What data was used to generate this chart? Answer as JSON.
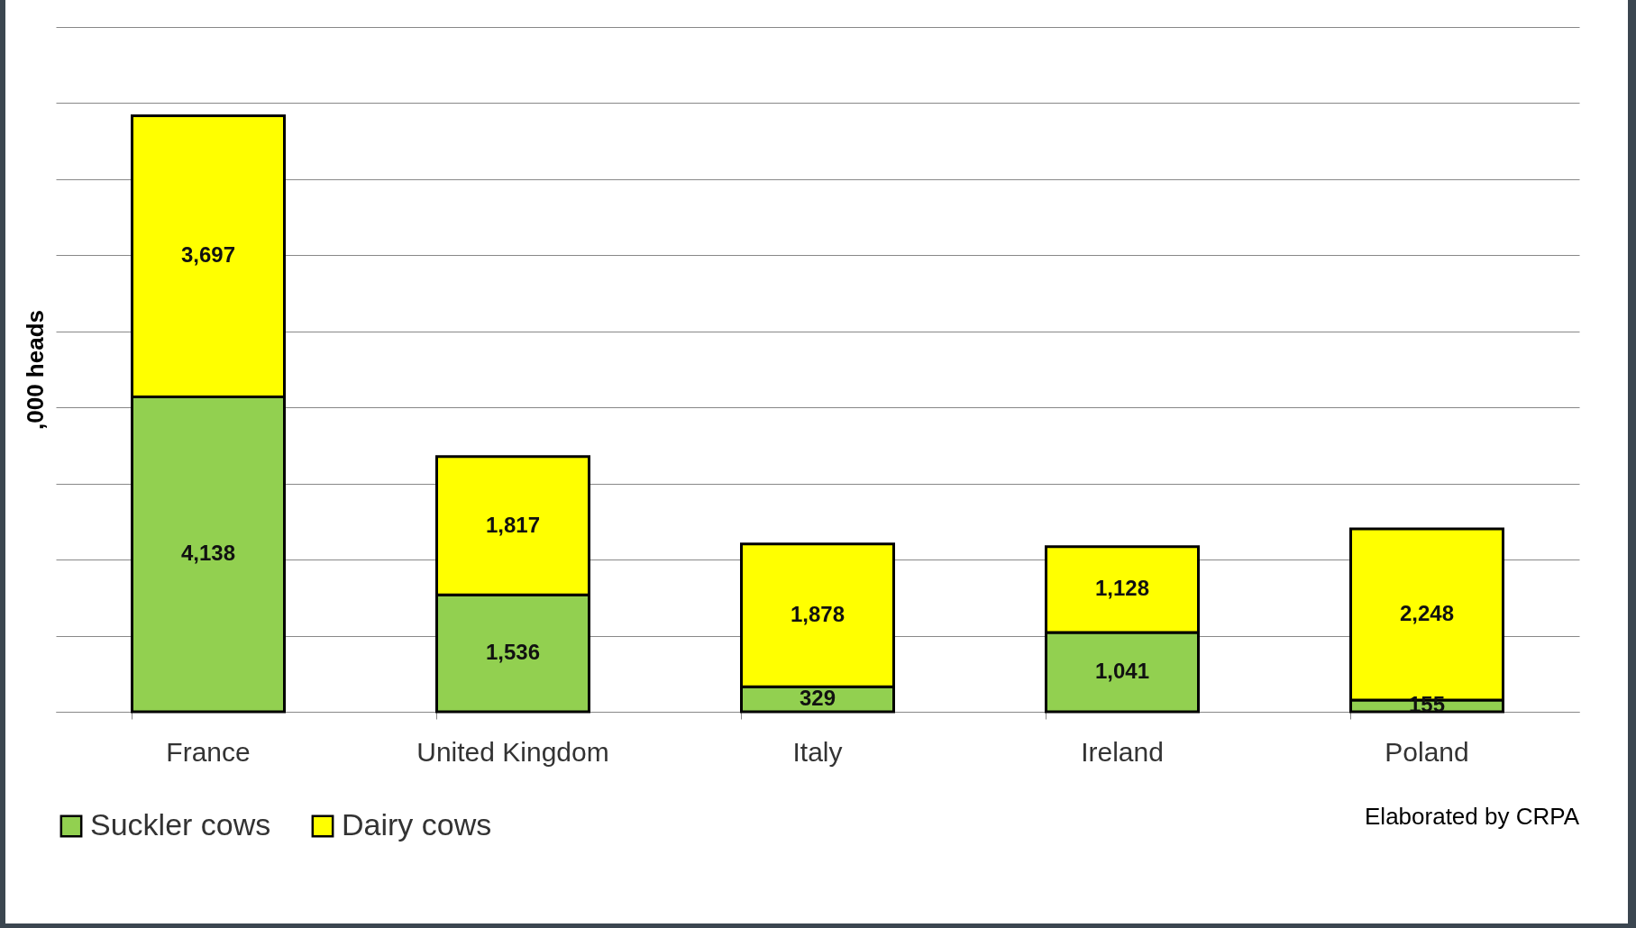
{
  "chart_data": {
    "type": "bar",
    "stacked": true,
    "ylabel": ",000 heads",
    "categories": [
      "France",
      "United Kingdom",
      "Italy",
      "Ireland",
      "Poland"
    ],
    "series": [
      {
        "name": "Suckler cows",
        "color": "#92d050",
        "values": [
          4138,
          1536,
          329,
          1041,
          155
        ],
        "value_labels": [
          "4,138",
          "1,536",
          "329",
          "1,041",
          "155"
        ]
      },
      {
        "name": "Dairy cows",
        "color": "#ffff00",
        "values": [
          3697,
          1817,
          1878,
          1128,
          2248
        ],
        "value_labels": [
          "3,697",
          "1,817",
          "1,878",
          "1,128",
          "2,248"
        ]
      }
    ],
    "ylim": [
      0,
      9000
    ],
    "yticks": [
      {
        "value": 0,
        "label": null
      },
      {
        "value": 1000,
        "label": null
      },
      {
        "value": 2000,
        "label": null
      },
      {
        "value": 3000,
        "label": null
      },
      {
        "value": 4000,
        "label": null
      },
      {
        "value": 5000,
        "label": null
      },
      {
        "value": 6000,
        "label": null
      },
      {
        "value": 7000,
        "label": null
      },
      {
        "value": 8000,
        "label": null
      },
      {
        "value": 9000,
        "label": null
      }
    ],
    "tick_labels": "x",
    "grid": "y",
    "legend": "bottom",
    "annotations": [
      "Elaborated by CRPA"
    ]
  }
}
